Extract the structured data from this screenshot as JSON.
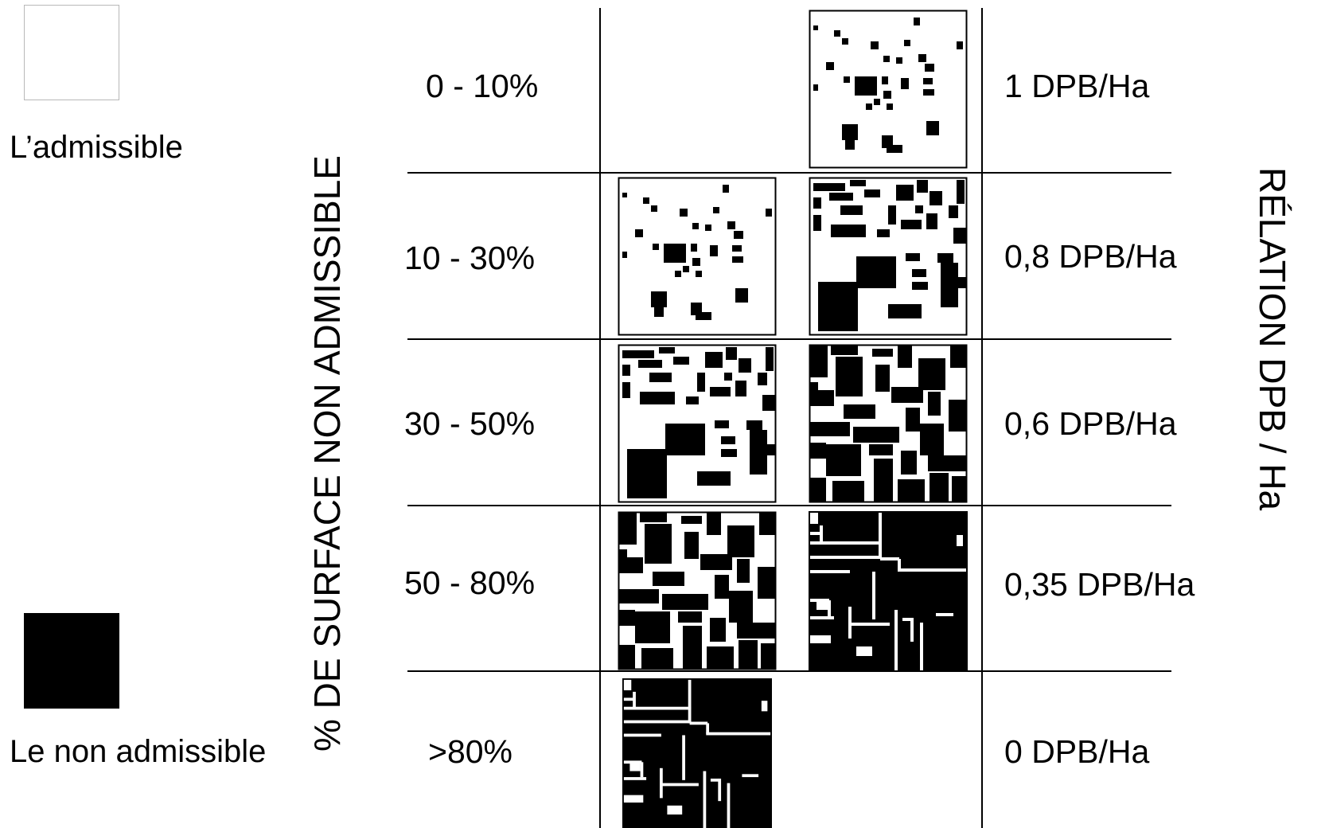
{
  "legend": {
    "admissible_label": "L’admissible",
    "non_admissible_label": "Le non admissible"
  },
  "left_axis_title": "% DE SURFACE NON ADMISSIBLE",
  "right_axis_title": "RÉLATION  DPB / Ha",
  "rows": [
    {
      "range": "0 - 10%",
      "relation": "1 DPB/Ha"
    },
    {
      "range": "10 - 30%",
      "relation": "0,8 DPB/Ha"
    },
    {
      "range": "30 - 50%",
      "relation": "0,6 DPB/Ha"
    },
    {
      "range": "50 - 80%",
      "relation": "0,35 DPB/Ha"
    },
    {
      "range": ">80%",
      "relation": "0 DPB/Ha"
    }
  ],
  "colors": {
    "admissible": "#ffffff",
    "non_admissible": "#000000",
    "lines": "#000000"
  }
}
